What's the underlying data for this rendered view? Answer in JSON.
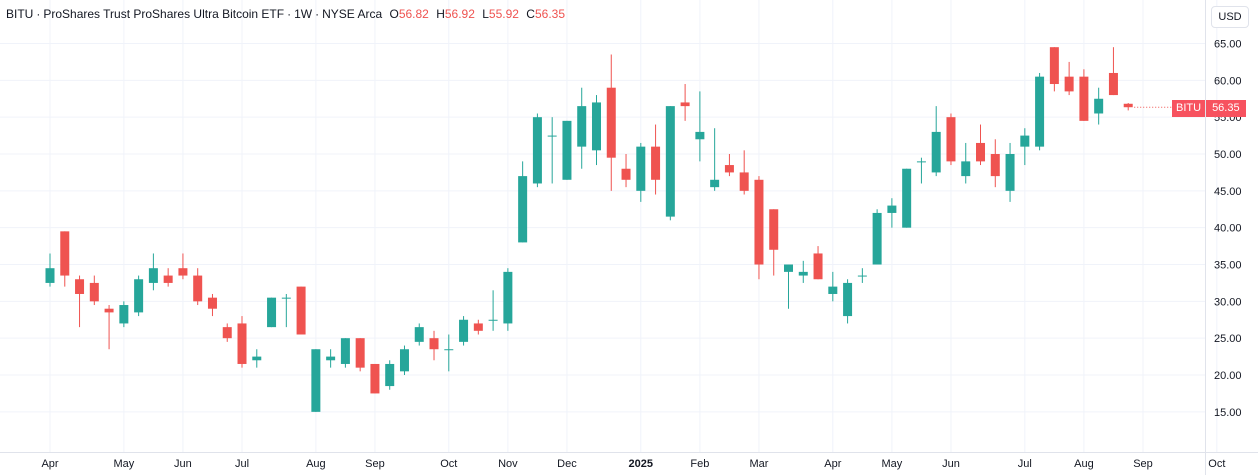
{
  "legend": {
    "symbol": "BITU",
    "name": "ProShares Trust ProShares Ultra Bitcoin ETF",
    "interval": "1W",
    "exchange": "NYSE Arca",
    "o_label": "O",
    "o_value": "56.82",
    "h_label": "H",
    "h_value": "56.92",
    "l_label": "L",
    "l_value": "55.92",
    "c_label": "C",
    "c_value": "56.35"
  },
  "currency_label": "USD",
  "price_tag": {
    "symbol": "BITU",
    "value": "56.35"
  },
  "colors": {
    "up": "#26a69a",
    "down": "#ef5350",
    "grid": "#f0f3fa",
    "axis_text": "#131722"
  },
  "chart_data": {
    "type": "candlestick",
    "title": "BITU · ProShares Trust ProShares Ultra Bitcoin ETF · 1W · NYSE Arca",
    "xlabel": "",
    "ylabel": "",
    "ylim": [
      10,
      67.5
    ],
    "y_ticks": [
      "15.00",
      "20.00",
      "25.00",
      "30.00",
      "35.00",
      "40.00",
      "45.00",
      "50.00",
      "55.00",
      "60.00",
      "65.00"
    ],
    "x_ticks": [
      {
        "label": "Apr",
        "week": 0
      },
      {
        "label": "May",
        "week": 5
      },
      {
        "label": "Jun",
        "week": 9
      },
      {
        "label": "Jul",
        "week": 13
      },
      {
        "label": "Aug",
        "week": 18
      },
      {
        "label": "Sep",
        "week": 22
      },
      {
        "label": "Oct",
        "week": 27
      },
      {
        "label": "Nov",
        "week": 31
      },
      {
        "label": "Dec",
        "week": 35
      },
      {
        "label": "2025",
        "week": 40
      },
      {
        "label": "Feb",
        "week": 44
      },
      {
        "label": "Mar",
        "week": 48
      },
      {
        "label": "Apr",
        "week": 53
      },
      {
        "label": "May",
        "week": 57
      },
      {
        "label": "Jun",
        "week": 61
      },
      {
        "label": "Jul",
        "week": 66
      },
      {
        "label": "Aug",
        "week": 70
      },
      {
        "label": "Sep",
        "week": 74
      },
      {
        "label": "Oct",
        "week": 79
      }
    ],
    "grid": true,
    "legend_position": "top-left",
    "candles": [
      [
        32.5,
        34.5,
        32.0,
        36.5
      ],
      [
        39.5,
        33.5,
        32.0,
        39.5
      ],
      [
        33.0,
        31.0,
        26.5,
        33.5
      ],
      [
        32.5,
        30.0,
        29.5,
        33.5
      ],
      [
        29.0,
        28.5,
        23.5,
        29.5
      ],
      [
        27.0,
        29.5,
        26.5,
        30.0
      ],
      [
        28.5,
        33.0,
        28.0,
        33.5
      ],
      [
        32.5,
        34.5,
        31.5,
        36.5
      ],
      [
        33.5,
        32.5,
        32.0,
        34.5
      ],
      [
        34.5,
        33.5,
        33.0,
        36.5
      ],
      [
        33.5,
        30.0,
        29.5,
        34.5
      ],
      [
        30.5,
        29.0,
        28.0,
        31.0
      ],
      [
        26.5,
        25.0,
        24.5,
        27.0
      ],
      [
        27.0,
        21.5,
        21.0,
        28.0
      ],
      [
        22.0,
        22.5,
        21.0,
        23.5
      ],
      [
        26.5,
        30.5,
        26.5,
        30.5
      ],
      [
        30.5,
        30.5,
        26.5,
        31.0
      ],
      [
        32.0,
        25.5,
        25.5,
        32.0
      ],
      [
        15.0,
        23.5,
        15.0,
        23.5
      ],
      [
        22.0,
        22.5,
        21.0,
        23.5
      ],
      [
        21.5,
        25.0,
        21.0,
        25.0
      ],
      [
        25.0,
        21.0,
        20.5,
        25.0
      ],
      [
        21.5,
        17.5,
        17.5,
        21.5
      ],
      [
        18.5,
        21.5,
        18.0,
        22.0
      ],
      [
        20.5,
        23.5,
        20.0,
        24.0
      ],
      [
        24.5,
        26.5,
        24.0,
        27.0
      ],
      [
        25.0,
        23.5,
        22.0,
        26.0
      ],
      [
        23.5,
        23.5,
        20.5,
        25.5
      ],
      [
        24.5,
        27.5,
        24.0,
        28.0
      ],
      [
        27.0,
        26.0,
        25.5,
        27.5
      ],
      [
        27.5,
        27.5,
        26.0,
        31.5
      ],
      [
        27.0,
        34.0,
        26.0,
        34.5
      ],
      [
        38.0,
        47.0,
        38.0,
        49.0
      ],
      [
        46.0,
        55.0,
        45.5,
        55.5
      ],
      [
        52.5,
        52.5,
        46.0,
        55.0
      ],
      [
        46.5,
        54.5,
        46.5,
        54.5
      ],
      [
        51.0,
        56.5,
        48.0,
        59.0
      ],
      [
        50.5,
        57.0,
        48.5,
        58.0
      ],
      [
        59.0,
        49.5,
        45.0,
        63.5
      ],
      [
        48.0,
        46.5,
        45.5,
        50.0
      ],
      [
        45.0,
        51.0,
        43.5,
        51.5
      ],
      [
        51.0,
        46.5,
        44.5,
        54.0
      ],
      [
        41.5,
        56.5,
        41.0,
        56.5
      ],
      [
        57.0,
        56.5,
        54.5,
        59.5
      ],
      [
        52.0,
        53.0,
        49.0,
        58.5
      ],
      [
        45.5,
        46.5,
        45.0,
        53.5
      ],
      [
        48.5,
        47.5,
        47.0,
        50.0
      ],
      [
        47.5,
        45.0,
        44.5,
        50.5
      ],
      [
        46.5,
        35.0,
        33.0,
        47.0
      ],
      [
        42.5,
        37.0,
        33.5,
        42.5
      ],
      [
        34.0,
        35.0,
        29.0,
        35.0
      ],
      [
        33.5,
        34.0,
        32.5,
        35.5
      ],
      [
        36.5,
        33.0,
        33.0,
        37.5
      ],
      [
        31.0,
        32.0,
        30.0,
        34.0
      ],
      [
        28.0,
        32.5,
        27.0,
        33.0
      ],
      [
        33.5,
        33.5,
        32.5,
        34.5
      ],
      [
        35.0,
        42.0,
        35.0,
        42.5
      ],
      [
        42.0,
        43.0,
        40.0,
        44.0
      ],
      [
        40.0,
        48.0,
        40.0,
        48.0
      ],
      [
        49.0,
        49.0,
        46.0,
        49.5
      ],
      [
        47.5,
        53.0,
        47.0,
        56.5
      ],
      [
        55.0,
        49.0,
        48.5,
        55.5
      ],
      [
        47.0,
        49.0,
        46.0,
        51.5
      ],
      [
        51.5,
        49.0,
        48.5,
        54.0
      ],
      [
        50.0,
        47.0,
        45.5,
        52.0
      ],
      [
        45.0,
        50.0,
        43.5,
        51.5
      ],
      [
        51.0,
        52.5,
        48.5,
        53.5
      ],
      [
        51.0,
        60.5,
        50.5,
        61.0
      ],
      [
        64.5,
        59.5,
        58.5,
        64.5
      ],
      [
        60.5,
        58.5,
        58.0,
        62.5
      ],
      [
        60.5,
        54.5,
        54.5,
        61.5
      ],
      [
        55.5,
        57.5,
        54.0,
        59.0
      ],
      [
        61.0,
        58.0,
        58.0,
        64.5
      ],
      [
        56.82,
        56.35,
        55.92,
        56.92
      ]
    ]
  }
}
